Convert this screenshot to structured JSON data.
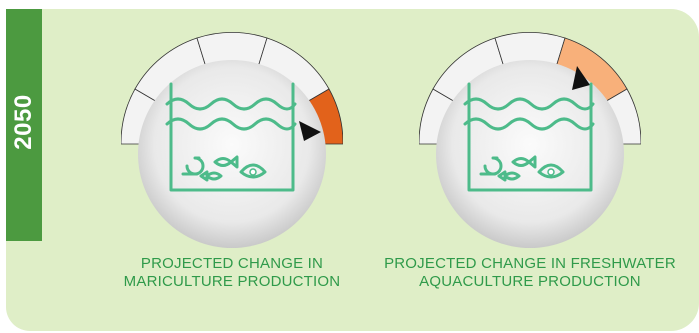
{
  "year": "2050",
  "gauges": [
    {
      "id": "mariculture",
      "label_line1": "PROJECTED CHANGE IN",
      "label_line2": "MARICULTURE PRODUCTION",
      "level_segment": 5,
      "segments": 5,
      "highlight_color": "#e2621b"
    },
    {
      "id": "freshwater",
      "label_line1": "PROJECTED CHANGE IN FRESHWATER",
      "label_line2": "AQUACULTURE PRODUCTION",
      "level_segment": 4,
      "segments": 5,
      "highlight_color": "#f8b07a"
    }
  ],
  "colors": {
    "panel": "#dfeec7",
    "tab": "#4c9a40",
    "icon": "#4dbb8a",
    "label": "#2f9a4a"
  }
}
